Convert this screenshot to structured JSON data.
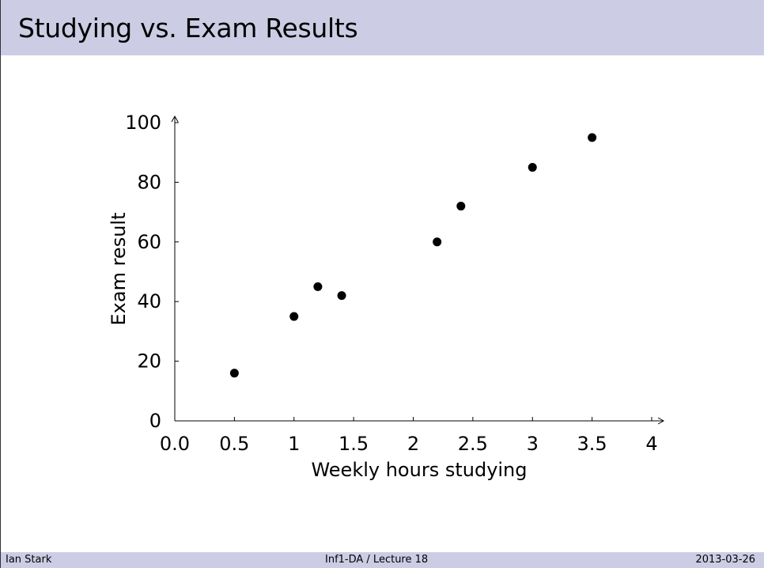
{
  "slide": {
    "title": "Studying vs. Exam Results"
  },
  "footer": {
    "author": "Ian Stark",
    "course": "Inf1-DA / Lecture 18",
    "date": "2013-03-26"
  },
  "chart_data": {
    "type": "scatter",
    "title": "",
    "xlabel": "Weekly hours studying",
    "ylabel": "Exam result",
    "xlim": [
      0,
      4
    ],
    "ylim": [
      0,
      100
    ],
    "xticks": [
      0,
      0.5,
      1,
      1.5,
      2,
      2.5,
      3,
      3.5,
      4
    ],
    "xtick_labels": [
      "0.0",
      "0.5",
      "1",
      "1.5",
      "2",
      "2.5",
      "3",
      "3.5",
      "4"
    ],
    "yticks": [
      0,
      20,
      40,
      60,
      80,
      100
    ],
    "ytick_labels": [
      "0",
      "20",
      "40",
      "60",
      "80",
      "100"
    ],
    "grid": false,
    "marker_color": "#000000",
    "points": [
      {
        "x": 0.5,
        "y": 16
      },
      {
        "x": 1.0,
        "y": 35
      },
      {
        "x": 1.2,
        "y": 45
      },
      {
        "x": 1.4,
        "y": 42
      },
      {
        "x": 2.2,
        "y": 60
      },
      {
        "x": 2.4,
        "y": 72
      },
      {
        "x": 3.0,
        "y": 85
      },
      {
        "x": 3.5,
        "y": 95
      }
    ]
  }
}
